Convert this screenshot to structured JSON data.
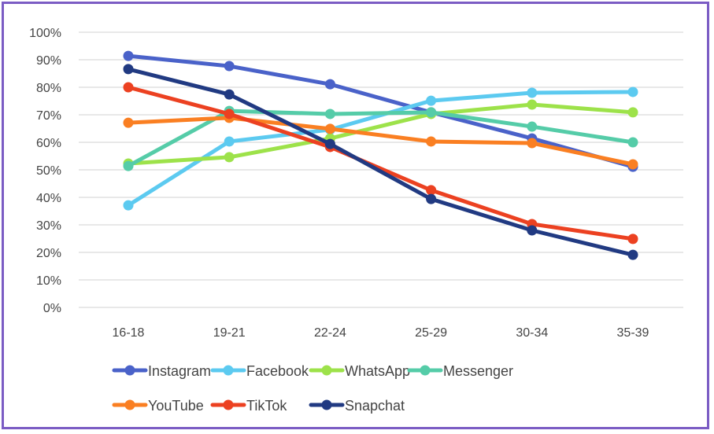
{
  "chart_data": {
    "type": "line",
    "title": "",
    "xlabel": "",
    "ylabel": "",
    "categories": [
      "16-18",
      "19-21",
      "22-24",
      "25-29",
      "30-34",
      "35-39"
    ],
    "ylim": [
      0,
      100
    ],
    "yticks": [
      "0%",
      "10%",
      "20%",
      "30%",
      "40%",
      "50%",
      "60%",
      "70%",
      "80%",
      "90%",
      "100%"
    ],
    "grid": true,
    "legend_position": "bottom",
    "series": [
      {
        "name": "Instagram",
        "color": "#4a62c9",
        "values": [
          91.4,
          87.7,
          81.1,
          70.9,
          61.4,
          51.1
        ]
      },
      {
        "name": "Facebook",
        "color": "#5ccaf0",
        "values": [
          37.1,
          60.3,
          64.6,
          75.1,
          78.0,
          78.3
        ]
      },
      {
        "name": "WhatsApp",
        "color": "#9de24a",
        "values": [
          52.3,
          54.6,
          61.4,
          70.3,
          73.7,
          70.9
        ]
      },
      {
        "name": "Messenger",
        "color": "#55cca8",
        "values": [
          51.4,
          71.4,
          70.3,
          70.9,
          65.7,
          60.0
        ]
      },
      {
        "name": "YouTube",
        "color": "#fa7f22",
        "values": [
          67.1,
          68.9,
          64.9,
          60.3,
          59.7,
          52.0
        ]
      },
      {
        "name": "TikTok",
        "color": "#ec4121",
        "values": [
          80.0,
          70.3,
          58.3,
          42.6,
          30.3,
          24.9
        ]
      },
      {
        "name": "Snapchat",
        "color": "#213a82",
        "values": [
          86.6,
          77.4,
          59.4,
          39.4,
          28.0,
          19.1
        ]
      }
    ]
  }
}
